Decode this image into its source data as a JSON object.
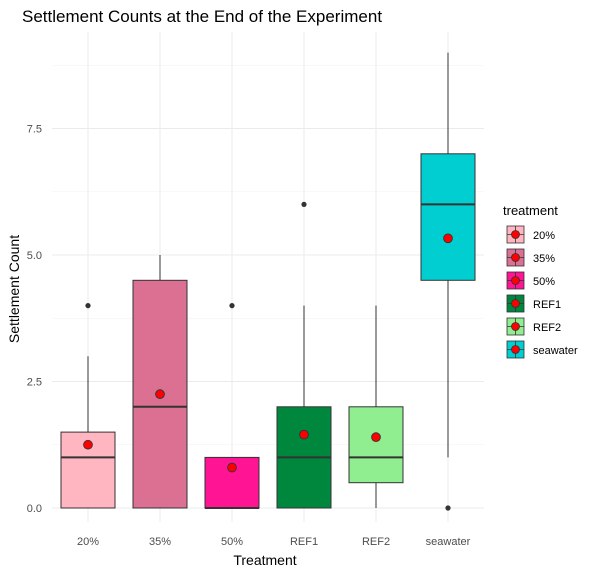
{
  "chart_data": {
    "type": "box",
    "title": "Settlement Counts at the End of the Experiment",
    "xlabel": "Treatment",
    "ylabel": "Settlement Count",
    "categories": [
      "20%",
      "35%",
      "50%",
      "REF1",
      "REF2",
      "seawater"
    ],
    "y_ticks": [
      0.0,
      2.5,
      5.0,
      7.5
    ],
    "y_tick_labels": [
      "0.0",
      "2.5",
      "5.0",
      "7.5"
    ],
    "ylim": [
      -0.3,
      9.3
    ],
    "grid": true,
    "legend": {
      "title": "treatment",
      "position": "right",
      "entries": [
        "20%",
        "35%",
        "50%",
        "REF1",
        "REF2",
        "seawater"
      ]
    },
    "boxes": [
      {
        "category": "20%",
        "min": 0,
        "q1": 0,
        "median": 1,
        "q3": 1.5,
        "max": 3,
        "mean": 1.25,
        "outliers": [
          4
        ],
        "color": "#FFB6C1"
      },
      {
        "category": "35%",
        "min": 0,
        "q1": 0,
        "median": 2,
        "q3": 4.5,
        "max": 5,
        "mean": 2.25,
        "outliers": [],
        "color": "#DB7093"
      },
      {
        "category": "50%",
        "min": 0,
        "q1": 0,
        "median": 0,
        "q3": 1,
        "max": 1,
        "mean": 0.8,
        "outliers": [
          4
        ],
        "color": "#FF1493"
      },
      {
        "category": "REF1",
        "min": 0,
        "q1": 0,
        "median": 1,
        "q3": 2,
        "max": 4,
        "mean": 1.45,
        "outliers": [
          6
        ],
        "color": "#00873E"
      },
      {
        "category": "REF2",
        "min": 0,
        "q1": 0.5,
        "median": 1,
        "q3": 2,
        "max": 4,
        "mean": 1.4,
        "outliers": [],
        "color": "#90EE90"
      },
      {
        "category": "seawater",
        "min": 1,
        "q1": 4.5,
        "median": 6,
        "q3": 7,
        "max": 9,
        "mean": 5.33,
        "outliers": [
          0
        ],
        "color": "#00CED1"
      }
    ],
    "mean_marker_color": "#FF0000"
  }
}
